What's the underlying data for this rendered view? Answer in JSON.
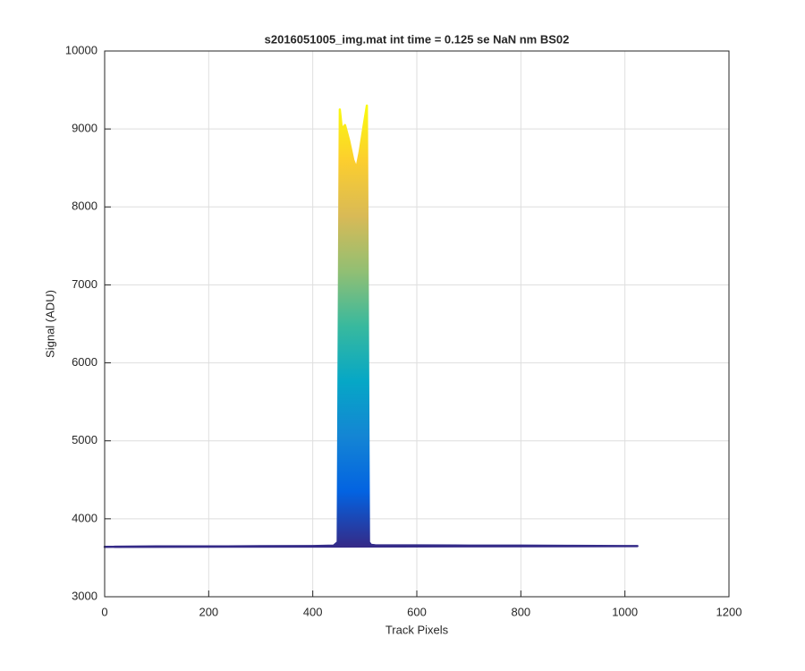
{
  "chart_data": {
    "type": "area",
    "title": "s2016051005_img.mat int time = 0.125 se  NaN nm BS02",
    "x_label": "Track Pixels",
    "y_label": "Signal (ADU)",
    "x": [
      0,
      100,
      200,
      300,
      400,
      440,
      448,
      452,
      456,
      462,
      470,
      478,
      484,
      490,
      498,
      504,
      508,
      512,
      520,
      600,
      700,
      800,
      900,
      1000,
      1024
    ],
    "values": [
      3640,
      3645,
      3645,
      3648,
      3650,
      3655,
      3700,
      9250,
      9000,
      9050,
      8850,
      8600,
      8500,
      8700,
      9050,
      9300,
      3700,
      3665,
      3660,
      3658,
      3656,
      3655,
      3652,
      3650,
      3650
    ],
    "colormap": [
      "#352a87",
      "#0363e1",
      "#1485d4",
      "#06a7c6",
      "#38b99e",
      "#92bf73",
      "#d9ba56",
      "#fcce2e",
      "#f9fb0e"
    ],
    "xlim": [
      0,
      1200
    ],
    "xticks": [
      0,
      200,
      400,
      600,
      800,
      1000,
      1200
    ],
    "ylim": [
      3000,
      10000
    ],
    "yticks": [
      3000,
      4000,
      5000,
      6000,
      7000,
      8000,
      9000,
      10000
    ],
    "grid": true
  }
}
